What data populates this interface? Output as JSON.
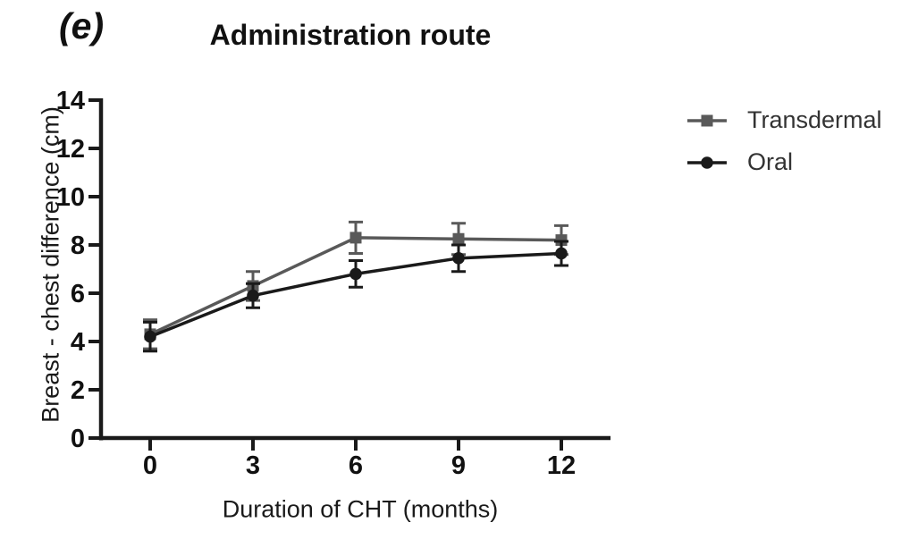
{
  "panel_label": "(e)",
  "chart_data": {
    "type": "line",
    "title": "Administration route",
    "xlabel": "Duration of CHT (months)",
    "ylabel": "Breast - chest difference (cm)",
    "x": [
      0,
      3,
      6,
      9,
      12
    ],
    "xticks": [
      0,
      3,
      6,
      9,
      12
    ],
    "yticks": [
      0,
      2,
      4,
      6,
      8,
      10,
      12,
      14
    ],
    "xlim": [
      0,
      12
    ],
    "ylim": [
      0,
      14
    ],
    "grid": false,
    "legend_position": "right",
    "axis_color": "#1a1a1a",
    "series": [
      {
        "name": "Transdermal",
        "marker": "square",
        "color": "#595959",
        "values": [
          4.3,
          6.3,
          8.3,
          8.25,
          8.2
        ],
        "errors": [
          0.6,
          0.6,
          0.65,
          0.65,
          0.6
        ]
      },
      {
        "name": "Oral",
        "marker": "circle",
        "color": "#1a1a1a",
        "values": [
          4.2,
          5.9,
          6.8,
          7.45,
          7.65
        ],
        "errors": [
          0.6,
          0.5,
          0.55,
          0.55,
          0.5
        ]
      }
    ]
  }
}
